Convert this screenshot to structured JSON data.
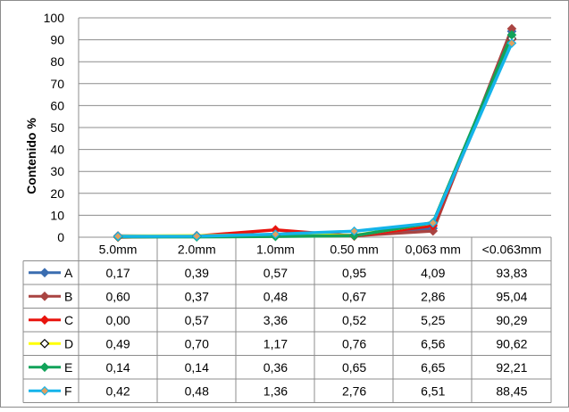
{
  "chart_data": {
    "type": "line",
    "ylabel": "Contenido %",
    "ylim": [
      0,
      100
    ],
    "y_ticks": [
      "0",
      "10",
      "20",
      "30",
      "40",
      "50",
      "60",
      "70",
      "80",
      "90",
      "100"
    ],
    "categories": [
      "5.0mm",
      "2.0mm",
      "1.0mm",
      "0.50 mm",
      "0,063 mm",
      "<0.063mm"
    ],
    "grid": true,
    "legend": "data-table-left",
    "series": [
      {
        "name": "A",
        "color": "#3A6DB0",
        "marker": "diamond",
        "marker_fill": "#3A6DB0",
        "values": [
          0.17,
          0.39,
          0.57,
          0.95,
          4.09,
          93.83
        ],
        "labels": [
          "0,17",
          "0,39",
          "0,57",
          "0,95",
          "4,09",
          "93,83"
        ]
      },
      {
        "name": "B",
        "color": "#A94442",
        "marker": "diamond",
        "marker_fill": "#A94442",
        "values": [
          0.6,
          0.37,
          0.48,
          0.67,
          2.86,
          95.04
        ],
        "labels": [
          "0,60",
          "0,37",
          "0,48",
          "0,67",
          "2,86",
          "95,04"
        ]
      },
      {
        "name": "C",
        "color": "#E8140E",
        "marker": "diamond",
        "marker_fill": "#E8140E",
        "values": [
          0.0,
          0.57,
          3.36,
          0.52,
          5.25,
          90.29
        ],
        "labels": [
          "0,00",
          "0,57",
          "3,36",
          "0,52",
          "5,25",
          "90,29"
        ]
      },
      {
        "name": "D",
        "color": "#FFFF00",
        "marker": "diamond",
        "marker_fill": "#FFFFFF",
        "values": [
          0.49,
          0.7,
          1.17,
          0.76,
          6.56,
          90.62
        ],
        "labels": [
          "0,49",
          "0,70",
          "1,17",
          "0,76",
          "6,56",
          "90,62"
        ]
      },
      {
        "name": "E",
        "color": "#12A35A",
        "marker": "diamond",
        "marker_fill": "#12A35A",
        "values": [
          0.14,
          0.14,
          0.36,
          0.65,
          6.65,
          92.21
        ],
        "labels": [
          "0,14",
          "0,14",
          "0,36",
          "0,65",
          "6,65",
          "92,21"
        ]
      },
      {
        "name": "F",
        "color": "#14B4EA",
        "marker": "diamond",
        "marker_fill": "#E0A060",
        "values": [
          0.42,
          0.48,
          1.36,
          2.76,
          6.51,
          88.45
        ],
        "labels": [
          "0,42",
          "0,48",
          "1,36",
          "2,76",
          "6,51",
          "88,45"
        ]
      }
    ]
  }
}
